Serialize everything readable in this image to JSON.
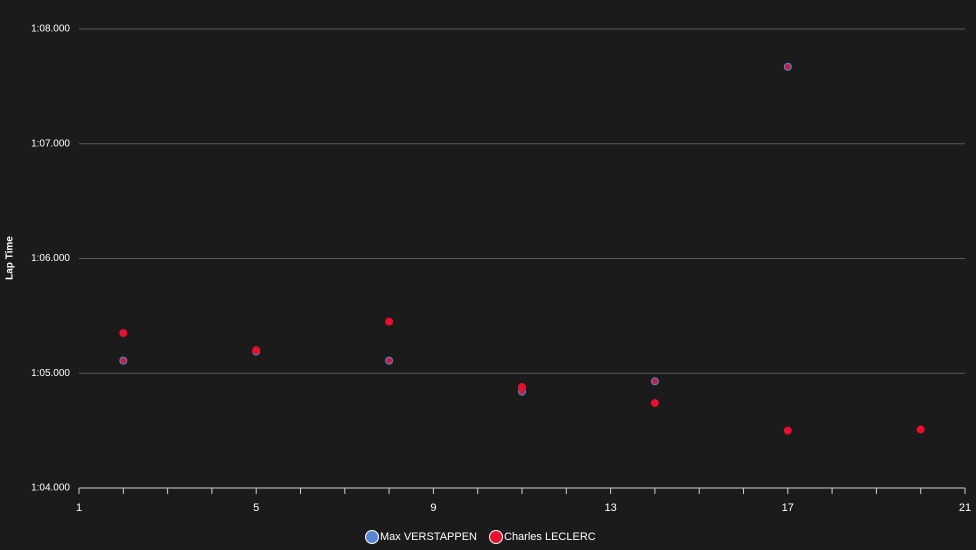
{
  "chart_data": {
    "type": "scatter",
    "y_label": "Lap Time",
    "xlim": [
      1,
      21
    ],
    "xticks": [
      1,
      5,
      9,
      13,
      17,
      21
    ],
    "x_minor_ticks": [
      2,
      3,
      4,
      6,
      7,
      8,
      10,
      11,
      12,
      14,
      15,
      16,
      18,
      19,
      20
    ],
    "ylim": [
      64,
      68
    ],
    "yticks": [
      {
        "value": 64,
        "label": "1:04.000"
      },
      {
        "value": 65,
        "label": "1:05.000"
      },
      {
        "value": 66,
        "label": "1:06.000"
      },
      {
        "value": 67,
        "label": "1:07.000"
      },
      {
        "value": 68,
        "label": "1:08.000"
      }
    ],
    "grid": true,
    "legend": "bottom",
    "series": [
      {
        "name": "Max VERSTAPPEN",
        "color": "#5b86d6",
        "marker_color": "#c2203f",
        "x": [
          2,
          5,
          8,
          11,
          14,
          17
        ],
        "values": [
          65.11,
          65.19,
          65.11,
          64.84,
          64.93,
          67.67
        ]
      },
      {
        "name": "Charles LECLERC",
        "color": "#e8102e",
        "marker_color": "#e8102e",
        "x": [
          2,
          5,
          8,
          11,
          14,
          17,
          20
        ],
        "values": [
          65.35,
          65.2,
          65.45,
          64.88,
          64.74,
          64.5,
          64.51
        ]
      }
    ]
  }
}
